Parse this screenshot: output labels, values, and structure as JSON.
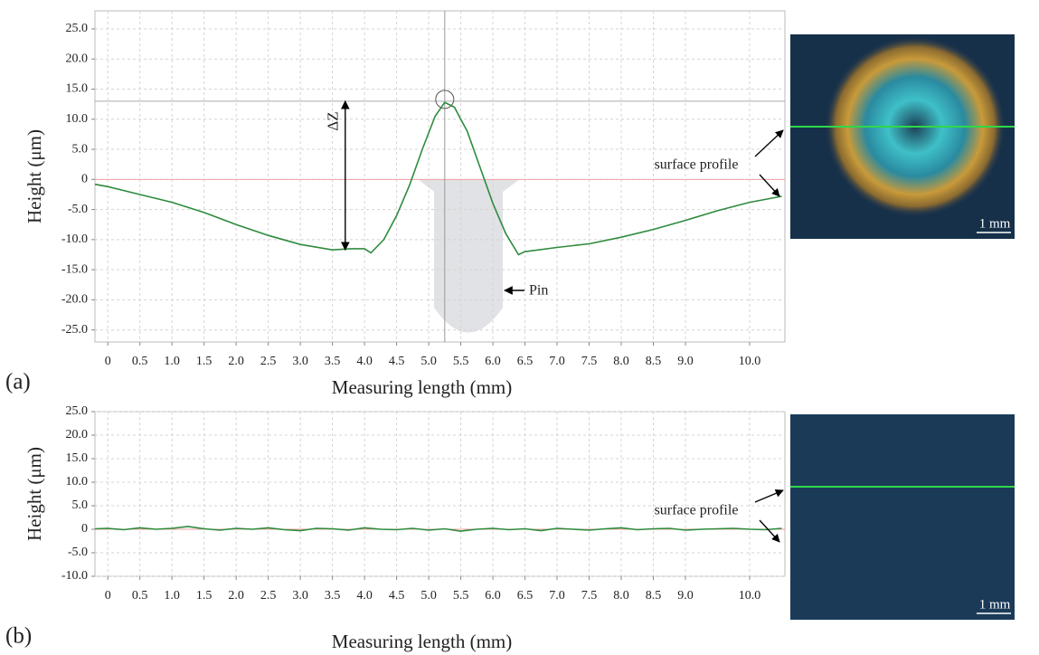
{
  "chart_data": [
    {
      "type": "line",
      "panel_label": "(a)",
      "xlabel": "Measuring length (mm)",
      "ylabel": "Height (μm)",
      "x": [
        -0.2,
        0,
        0.5,
        1,
        1.5,
        2,
        2.5,
        3,
        3.5,
        3.8,
        4.0,
        4.1,
        4.3,
        4.5,
        4.7,
        4.9,
        5.1,
        5.25,
        5.4,
        5.6,
        5.8,
        6.0,
        6.2,
        6.4,
        6.5,
        7.0,
        7.5,
        8.0,
        8.5,
        9.0,
        9.5,
        10.0,
        10.5
      ],
      "values": [
        -0.8,
        -1.2,
        -2.5,
        -3.8,
        -5.5,
        -7.5,
        -9.3,
        -10.8,
        -11.7,
        -11.5,
        -11.5,
        -12.2,
        -10,
        -6,
        -1,
        5,
        10.5,
        12.8,
        12,
        8,
        2,
        -4,
        -9,
        -12.5,
        -12,
        -11.3,
        -10.7,
        -9.6,
        -8.3,
        -6.8,
        -5.2,
        -3.8,
        -2.8
      ],
      "color": "#2e8b3e",
      "grid": true,
      "xlim": [
        -0.2,
        10.55
      ],
      "ylim": [
        -27,
        28
      ],
      "xticks": [
        0,
        0.5,
        {
          "value": 1,
          "label": "1.0"
        },
        1.5,
        {
          "value": 2,
          "label": "2.0"
        },
        2.5,
        {
          "value": 3,
          "label": "3.0"
        },
        3.5,
        {
          "value": 4,
          "label": "4.0"
        },
        4.5,
        {
          "value": 5,
          "label": "5.0"
        },
        5.5,
        {
          "value": 6,
          "label": "6.0"
        },
        6.5,
        {
          "value": 7,
          "label": "7.0"
        },
        7.5,
        {
          "value": 8,
          "label": "8.0"
        },
        8.5,
        {
          "value": 9,
          "label": "9.0"
        },
        {
          "value": 10,
          "label": "10.0"
        }
      ],
      "yticks": [
        {
          "value": 25,
          "label": "25.0"
        },
        {
          "value": 20,
          "label": "20.0"
        },
        {
          "value": 15,
          "label": "15.0"
        },
        {
          "value": 10,
          "label": "10.0"
        },
        {
          "value": 5,
          "label": "5.0"
        },
        0,
        {
          "value": -5,
          "label": "-5.0"
        },
        {
          "value": -10,
          "label": "-10.0"
        },
        {
          "value": -15,
          "label": "-15.0"
        },
        {
          "value": -20,
          "label": "-20.0"
        },
        {
          "value": -25,
          "label": "-25.0"
        }
      ],
      "delta_z": {
        "label": "ΔZ",
        "x": 3.7,
        "top": 13,
        "bottom": -11.7
      },
      "peak": {
        "x": 5.25,
        "y": 13
      },
      "pin_label": "Pin",
      "profile_label": "surface profile",
      "scale_bar": "1 mm"
    },
    {
      "type": "line",
      "panel_label": "(b)",
      "xlabel": "Measuring length (mm)",
      "ylabel": "Height (μm)",
      "x": [
        -0.2,
        0,
        0.25,
        0.5,
        0.75,
        1,
        1.25,
        1.5,
        1.75,
        2,
        2.25,
        2.5,
        2.75,
        3,
        3.25,
        3.5,
        3.75,
        4,
        4.25,
        4.5,
        4.75,
        5,
        5.25,
        5.5,
        5.75,
        6,
        6.25,
        6.5,
        6.75,
        7,
        7.25,
        7.5,
        7.75,
        8,
        8.25,
        8.5,
        8.75,
        9,
        9.25,
        9.5,
        9.75,
        10,
        10.25,
        10.5
      ],
      "values": [
        0.1,
        0.2,
        -0.1,
        0.3,
        0,
        0.2,
        0.6,
        0.1,
        -0.2,
        0.2,
        0,
        0.3,
        -0.1,
        -0.3,
        0.2,
        0.1,
        -0.2,
        0.3,
        0,
        -0.1,
        0.2,
        -0.2,
        0.1,
        -0.4,
        0,
        0.2,
        -0.1,
        0.1,
        -0.3,
        0.2,
        0,
        -0.2,
        0.1,
        0.3,
        -0.1,
        0.1,
        0.2,
        -0.2,
        0,
        0.1,
        0.2,
        0,
        -0.1,
        0.2
      ],
      "color": "#2e8b3e",
      "grid": true,
      "xlim": [
        -0.2,
        10.55
      ],
      "ylim": [
        -10,
        25
      ],
      "xticks": [
        0,
        0.5,
        {
          "value": 1,
          "label": "1.0"
        },
        1.5,
        {
          "value": 2,
          "label": "2.0"
        },
        2.5,
        {
          "value": 3,
          "label": "3.0"
        },
        3.5,
        {
          "value": 4,
          "label": "4.0"
        },
        4.5,
        {
          "value": 5,
          "label": "5.0"
        },
        5.5,
        {
          "value": 6,
          "label": "6.0"
        },
        6.5,
        {
          "value": 7,
          "label": "7.0"
        },
        7.5,
        {
          "value": 8,
          "label": "8.0"
        },
        8.5,
        {
          "value": 9,
          "label": "9.0"
        },
        {
          "value": 10,
          "label": "10.0"
        }
      ],
      "yticks": [
        {
          "value": 25,
          "label": "25.0"
        },
        {
          "value": 20,
          "label": "20.0"
        },
        {
          "value": 15,
          "label": "15.0"
        },
        {
          "value": 10,
          "label": "10.0"
        },
        {
          "value": 5,
          "label": "5.0"
        },
        0,
        {
          "value": -5,
          "label": "-5.0"
        },
        {
          "value": -10,
          "label": "-10.0"
        }
      ],
      "profile_label": "surface profile",
      "scale_bar": "1 mm"
    }
  ]
}
